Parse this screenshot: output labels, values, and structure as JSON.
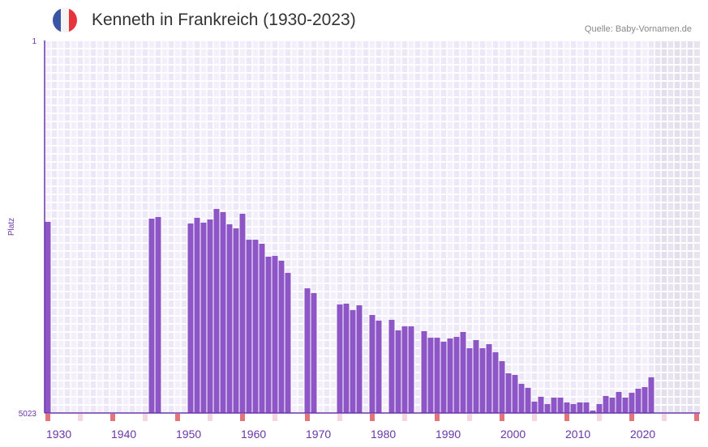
{
  "header": {
    "title": "Kenneth in Frankreich (1930-2023)",
    "source": "Quelle: Baby-Vornamen.de",
    "flag_colors": [
      "#3a55a4",
      "#f4f4f4",
      "#e8333c"
    ]
  },
  "colors": {
    "bar": "#8e55c6",
    "axis": "#6a35a8",
    "label": "#6a35a8",
    "decade_marker": "#e5737a",
    "half_marker": "#f3d6e0"
  },
  "chart_data": {
    "type": "bar",
    "title": "Kenneth in Frankreich (1930-2023)",
    "xlabel": "",
    "ylabel": "Platz",
    "ylim": [
      1,
      5023
    ],
    "y_inverted": true,
    "y_tick_labels": [
      "1",
      "5023"
    ],
    "x_range": [
      1930,
      2030
    ],
    "x_tick_labels": [
      "1930",
      "1940",
      "1950",
      "1960",
      "1970",
      "1980",
      "1990",
      "2000",
      "2010",
      "2020"
    ],
    "future_shaded_from": 2024,
    "years": [
      1930,
      1946,
      1947,
      1952,
      1953,
      1954,
      1955,
      1956,
      1957,
      1958,
      1959,
      1960,
      1961,
      1962,
      1963,
      1964,
      1965,
      1966,
      1967,
      1970,
      1971,
      1975,
      1976,
      1977,
      1978,
      1980,
      1981,
      1983,
      1984,
      1985,
      1986,
      1988,
      1989,
      1990,
      1991,
      1992,
      1993,
      1994,
      1995,
      1996,
      1997,
      1998,
      1999,
      2000,
      2001,
      2002,
      2003,
      2004,
      2005,
      2006,
      2007,
      2008,
      2009,
      2010,
      2011,
      2012,
      2013,
      2014,
      2015,
      2016,
      2017,
      2018,
      2019,
      2020,
      2021,
      2022,
      2023
    ],
    "values": [
      2446,
      2403,
      2381,
      2468,
      2392,
      2457,
      2414,
      2272,
      2315,
      2479,
      2534,
      2337,
      2687,
      2687,
      2741,
      2916,
      2905,
      2970,
      3134,
      3342,
      3407,
      3560,
      3549,
      3636,
      3571,
      3702,
      3778,
      3767,
      3909,
      3855,
      3855,
      3920,
      4008,
      4008,
      4062,
      4018,
      3997,
      3931,
      4149,
      4040,
      4149,
      4095,
      4204,
      4324,
      4488,
      4510,
      4630,
      4684,
      4870,
      4804,
      4903,
      4815,
      4815,
      4881,
      4903,
      4881,
      4881,
      4990,
      4903,
      4794,
      4815,
      4739,
      4815,
      4750,
      4695,
      4674,
      4542
    ]
  }
}
